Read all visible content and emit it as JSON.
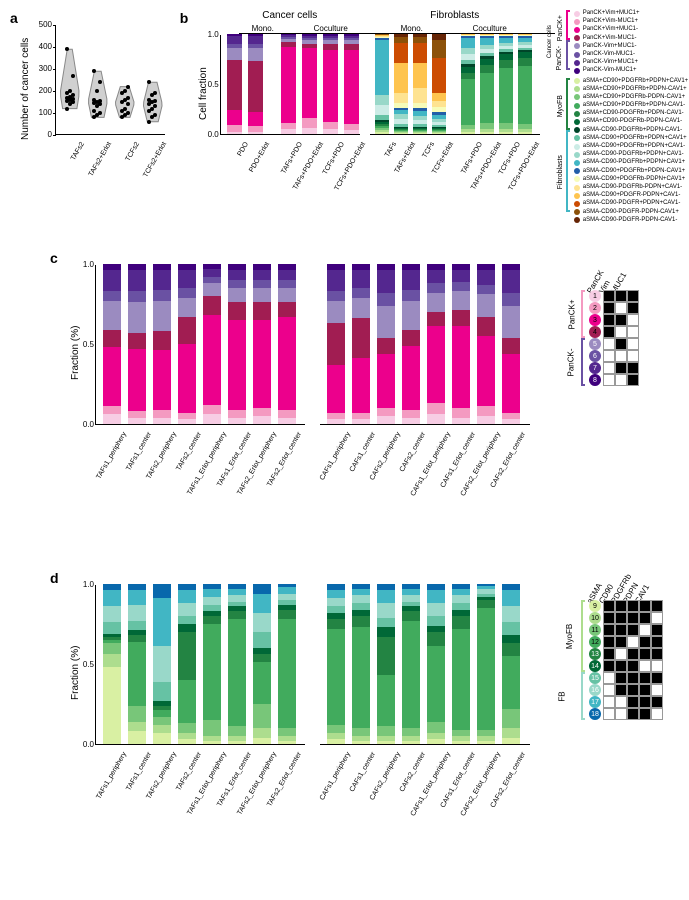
{
  "panel_a": {
    "label": "a",
    "ylabel": "Number of cancer cells",
    "ylim": [
      0,
      500
    ],
    "yticks": [
      0,
      100,
      200,
      300,
      400,
      500
    ],
    "categories": [
      "TAFs2",
      "TAFs2+Erlot",
      "TCFs2",
      "TCFs2+Erlot"
    ],
    "violin_color": "#d0d0d0",
    "dot_color": "#000000",
    "points": [
      [
        120,
        140,
        150,
        155,
        160,
        165,
        170,
        175,
        180,
        190,
        200,
        270,
        390
      ],
      [
        80,
        90,
        100,
        110,
        130,
        140,
        145,
        150,
        155,
        160,
        200,
        240,
        290
      ],
      [
        80,
        90,
        100,
        110,
        120,
        140,
        150,
        160,
        170,
        190,
        200,
        220
      ],
      [
        60,
        80,
        90,
        110,
        120,
        130,
        140,
        150,
        155,
        160,
        180,
        190,
        240
      ]
    ]
  },
  "panel_b": {
    "label": "b",
    "title_left": "Cancer cells",
    "title_right": "Fibroblasts",
    "sub_left": [
      "Mono.",
      "Coculture"
    ],
    "sub_right": [
      "Mono.",
      "Coculture"
    ],
    "ylabel": "Cell fraction",
    "ylim": [
      0,
      1.0
    ],
    "yticks": [
      0,
      0.5,
      1.0
    ],
    "cats_cancer": [
      "PDO",
      "PDO+Erlot",
      "TAFs+PDO",
      "TAFs+PDO+Erlot",
      "TCFs+PDO",
      "TCFs+PDO+Erlot"
    ],
    "cats_fib": [
      "TAFs",
      "TAFs+Erlot",
      "TCFs",
      "TCFs+Erlot",
      "TAFs+PDO",
      "TAFs+PDO+Erlot",
      "TCFs+PDO",
      "TCFs+PDO+Erlot"
    ],
    "cancer_colors": [
      "#f7cde4",
      "#f49ac1",
      "#ec008c",
      "#a11d52",
      "#9b8bc0",
      "#6a51a3",
      "#54278f",
      "#3f007d"
    ],
    "cancer_labels": [
      "PanCK+Vim+MUC1+",
      "PanCK+Vim-MUC1+",
      "PanCK+Vim+MUC1-",
      "PanCK+Vim-MUC1-",
      "PanCK-Vim+MUC1-",
      "PanCK-Vim-MUC1-",
      "PanCK-Vim+MUC1+",
      "PanCK-Vim-MUC1+"
    ],
    "cancer_section_top": "PanCK+",
    "cancer_section_bot": "PanCK-",
    "cancer_group": "Cancer cells",
    "fib_colors": [
      "#d9f0a3",
      "#addd8e",
      "#78c679",
      "#41ab5d",
      "#238443",
      "#006837",
      "#004529",
      "#66c2a4",
      "#ccece6",
      "#99d8c9",
      "#41b6c4",
      "#225ea8",
      "#f7fcb9",
      "#fee391",
      "#fec44f",
      "#cc4c02",
      "#8c5109",
      "#662506"
    ],
    "fib_labels": [
      "aSMA+CD90+PDGFRb+PDPN+CAV1+",
      "aSMA+CD90+PDGFRb+PDPN-CAV1+",
      "aSMA+CD90+PDGFRb-PDPN-CAV1+",
      "aSMA+CD90+PDGFRb+PDPN-CAV1-",
      "aSMA+CD90-PDGFRb+PDPN-CAV1-",
      "aSMA+CD90-PDGFRb-PDPN-CAV1-",
      "aSMA-CD90-PDGFRb+PDPN-CAV1-",
      "aSMA-CD90+PDGFRb+PDPN+CAV1+",
      "aSMA-CD90+PDGFRb+PDPN+CAV1-",
      "aSMA-CD90-PDGFRb+PDPN+CAV1-",
      "aSMA-CD90-PDGFRb+PDPN+CAV1+",
      "aSMA-CD90+PDGFRb+PDPN-CAV1+",
      "aSMA-CD90+PDGFRb-PDPN+CAV1+",
      "aSMA-CD90-PDGFRb-PDPN+CAV1-",
      "aSMA-CD90+PDGFR-PDPN+CAV1-",
      "aSMA-CD90-PDGFR+PDPN+CAV1-",
      "aSMA-CD90-PDGFR-PDPN-CAV1+",
      "aSMA-CD90-PDGFR-PDPN-CAV1-"
    ],
    "fib_section_top": "MyoFB",
    "fib_section_bot": "Fibroblasts",
    "cancer_stacks": [
      [
        0.02,
        0.07,
        0.15,
        0.5,
        0.12,
        0.04,
        0.08,
        0.02
      ],
      [
        0.02,
        0.06,
        0.14,
        0.51,
        0.13,
        0.04,
        0.08,
        0.02
      ],
      [
        0.05,
        0.06,
        0.76,
        0.05,
        0.03,
        0.02,
        0.02,
        0.01
      ],
      [
        0.06,
        0.1,
        0.7,
        0.04,
        0.04,
        0.02,
        0.02,
        0.02
      ],
      [
        0.05,
        0.07,
        0.72,
        0.06,
        0.04,
        0.02,
        0.02,
        0.02
      ],
      [
        0.04,
        0.06,
        0.74,
        0.06,
        0.04,
        0.02,
        0.02,
        0.02
      ]
    ],
    "fib_stacks": [
      [
        0.02,
        0.02,
        0.02,
        0.02,
        0.02,
        0.02,
        0.02,
        0.05,
        0.1,
        0.1,
        0.55,
        0.02,
        0.01,
        0.01,
        0.01,
        0.005,
        0.005,
        0.0
      ],
      [
        0.01,
        0.01,
        0.01,
        0.01,
        0.01,
        0.01,
        0.01,
        0.03,
        0.05,
        0.05,
        0.04,
        0.02,
        0.05,
        0.1,
        0.3,
        0.2,
        0.06,
        0.03
      ],
      [
        0.01,
        0.01,
        0.01,
        0.01,
        0.01,
        0.01,
        0.01,
        0.03,
        0.04,
        0.04,
        0.05,
        0.03,
        0.05,
        0.15,
        0.25,
        0.2,
        0.06,
        0.03
      ],
      [
        0.01,
        0.01,
        0.01,
        0.01,
        0.01,
        0.01,
        0.01,
        0.02,
        0.03,
        0.03,
        0.04,
        0.03,
        0.05,
        0.06,
        0.08,
        0.35,
        0.18,
        0.06
      ],
      [
        0.02,
        0.03,
        0.04,
        0.46,
        0.06,
        0.06,
        0.03,
        0.04,
        0.06,
        0.06,
        0.1,
        0.02,
        0.01,
        0.005,
        0.005,
        0.0,
        0.0,
        0.0
      ],
      [
        0.02,
        0.03,
        0.06,
        0.5,
        0.08,
        0.06,
        0.03,
        0.03,
        0.04,
        0.04,
        0.07,
        0.02,
        0.01,
        0.005,
        0.005,
        0.0,
        0.0,
        0.0
      ],
      [
        0.02,
        0.03,
        0.06,
        0.55,
        0.08,
        0.06,
        0.02,
        0.03,
        0.03,
        0.03,
        0.05,
        0.02,
        0.01,
        0.005,
        0.005,
        0.0,
        0.0,
        0.0
      ],
      [
        0.02,
        0.03,
        0.05,
        0.58,
        0.08,
        0.06,
        0.02,
        0.02,
        0.03,
        0.03,
        0.04,
        0.02,
        0.01,
        0.005,
        0.005,
        0.0,
        0.0,
        0.0
      ]
    ]
  },
  "panel_c": {
    "label": "c",
    "ylabel": "Fraction (%)",
    "ylim": [
      0,
      1.0
    ],
    "yticks": [
      0.0,
      0.5,
      1.0
    ],
    "cats1": [
      "TAFs1_periphery",
      "TAFs1_center",
      "TAFs2_periphery",
      "TAFs2_center",
      "TAFs1_Erlot_periphery",
      "TAFs1_Erlot_center",
      "TAFs2_Erlot_periphery",
      "TAFs2_Erlot_center"
    ],
    "cats2": [
      "CAFs1_periphery",
      "CAFs1_center",
      "CAFs2_periphery",
      "CAFs2_center",
      "CAFs1_Erlot_periphery",
      "CAFs1_Erlot_center",
      "CAFs2_Erlot_periphery",
      "CAFs2_Erlot_center"
    ],
    "colors": [
      "#f7cde4",
      "#f49ac1",
      "#ec008c",
      "#a11d52",
      "#9b8bc0",
      "#6a51a3",
      "#54278f",
      "#3f007d"
    ],
    "matrix_headers": [
      "PanCK",
      "Vim",
      "MUC1"
    ],
    "matrix_rows": [
      [
        1,
        1,
        1
      ],
      [
        1,
        0,
        1
      ],
      [
        1,
        1,
        0
      ],
      [
        1,
        0,
        0
      ],
      [
        0,
        1,
        0
      ],
      [
        0,
        0,
        0
      ],
      [
        0,
        1,
        1
      ],
      [
        0,
        0,
        1
      ]
    ],
    "matrix_section_top": "PanCK+",
    "matrix_section_bot": "PanCK-",
    "stacks1": [
      [
        0.06,
        0.05,
        0.37,
        0.11,
        0.18,
        0.06,
        0.13,
        0.04
      ],
      [
        0.04,
        0.04,
        0.39,
        0.1,
        0.19,
        0.07,
        0.13,
        0.04
      ],
      [
        0.04,
        0.05,
        0.37,
        0.12,
        0.19,
        0.07,
        0.12,
        0.04
      ],
      [
        0.03,
        0.04,
        0.43,
        0.17,
        0.12,
        0.06,
        0.11,
        0.04
      ],
      [
        0.06,
        0.06,
        0.56,
        0.12,
        0.08,
        0.04,
        0.05,
        0.03
      ],
      [
        0.04,
        0.05,
        0.56,
        0.11,
        0.09,
        0.05,
        0.06,
        0.04
      ],
      [
        0.05,
        0.05,
        0.55,
        0.11,
        0.09,
        0.05,
        0.06,
        0.04
      ],
      [
        0.04,
        0.05,
        0.58,
        0.09,
        0.09,
        0.05,
        0.06,
        0.04
      ]
    ],
    "stacks2": [
      [
        0.03,
        0.04,
        0.3,
        0.26,
        0.14,
        0.06,
        0.13,
        0.04
      ],
      [
        0.03,
        0.04,
        0.34,
        0.25,
        0.13,
        0.06,
        0.11,
        0.04
      ],
      [
        0.05,
        0.05,
        0.34,
        0.1,
        0.2,
        0.08,
        0.14,
        0.04
      ],
      [
        0.04,
        0.05,
        0.4,
        0.1,
        0.18,
        0.07,
        0.12,
        0.04
      ],
      [
        0.06,
        0.07,
        0.48,
        0.09,
        0.12,
        0.06,
        0.08,
        0.04
      ],
      [
        0.04,
        0.06,
        0.51,
        0.1,
        0.12,
        0.06,
        0.07,
        0.04
      ],
      [
        0.05,
        0.06,
        0.44,
        0.12,
        0.14,
        0.06,
        0.09,
        0.04
      ],
      [
        0.03,
        0.04,
        0.37,
        0.1,
        0.2,
        0.08,
        0.14,
        0.04
      ]
    ]
  },
  "panel_d": {
    "label": "d",
    "ylabel": "Fraction (%)",
    "ylim": [
      0,
      1.0
    ],
    "yticks": [
      0.0,
      0.5,
      1.0
    ],
    "cats1": [
      "TAFs1_periphery",
      "TAFs1_center",
      "TAFs2_periphery",
      "TAFs2_center",
      "TAFs1_Erlot_periphery",
      "TAFs1_Erlot_center",
      "TAFs2_Erlot_periphery",
      "TAFs2_Erlot_center"
    ],
    "cats2": [
      "CAFs1_periphery",
      "CAFs1_center",
      "CAFs2_periphery",
      "CAFs2_center",
      "CAFs1_Erlot_periphery",
      "CAFs1_Erlot_center",
      "CAFs2_Erlot_periphery",
      "CAFs2_Erlot_center"
    ],
    "colors": [
      "#d9f0a3",
      "#addd8e",
      "#78c679",
      "#41ab5d",
      "#238443",
      "#006837",
      "#66c2a4",
      "#99d8c9",
      "#41b6c4",
      "#0868ac"
    ],
    "matrix_headers": [
      "aSMA",
      "CD90",
      "PDGFRb",
      "PDPN",
      "CAV1"
    ],
    "matrix_nums": [
      9,
      10,
      11,
      12,
      13,
      14,
      15,
      16,
      17,
      18
    ],
    "matrix_rows": [
      [
        1,
        1,
        1,
        1,
        1
      ],
      [
        1,
        1,
        1,
        1,
        0
      ],
      [
        1,
        1,
        1,
        0,
        1
      ],
      [
        1,
        1,
        0,
        1,
        1
      ],
      [
        1,
        0,
        1,
        1,
        1
      ],
      [
        1,
        1,
        1,
        0,
        0
      ],
      [
        0,
        1,
        1,
        1,
        1
      ],
      [
        0,
        1,
        1,
        1,
        0
      ],
      [
        0,
        0,
        1,
        1,
        1
      ],
      [
        0,
        0,
        1,
        1,
        0
      ]
    ],
    "matrix_section_top": "MyoFB",
    "matrix_section_bot": "FB",
    "stacks1": [
      [
        0.48,
        0.08,
        0.07,
        0.02,
        0.02,
        0.02,
        0.07,
        0.1,
        0.1,
        0.04
      ],
      [
        0.08,
        0.06,
        0.1,
        0.4,
        0.04,
        0.03,
        0.06,
        0.1,
        0.09,
        0.04
      ],
      [
        0.07,
        0.05,
        0.05,
        0.04,
        0.03,
        0.03,
        0.12,
        0.22,
        0.3,
        0.09
      ],
      [
        0.03,
        0.04,
        0.06,
        0.27,
        0.3,
        0.05,
        0.05,
        0.08,
        0.08,
        0.04
      ],
      [
        0.02,
        0.03,
        0.1,
        0.6,
        0.05,
        0.03,
        0.04,
        0.05,
        0.05,
        0.03
      ],
      [
        0.02,
        0.03,
        0.06,
        0.67,
        0.05,
        0.03,
        0.03,
        0.04,
        0.04,
        0.03
      ],
      [
        0.04,
        0.06,
        0.15,
        0.26,
        0.05,
        0.04,
        0.1,
        0.12,
        0.12,
        0.06
      ],
      [
        0.02,
        0.03,
        0.05,
        0.68,
        0.06,
        0.03,
        0.03,
        0.04,
        0.04,
        0.02
      ]
    ],
    "stacks2": [
      [
        0.03,
        0.04,
        0.05,
        0.6,
        0.06,
        0.04,
        0.04,
        0.05,
        0.05,
        0.04
      ],
      [
        0.02,
        0.03,
        0.05,
        0.63,
        0.07,
        0.04,
        0.04,
        0.05,
        0.04,
        0.03
      ],
      [
        0.02,
        0.03,
        0.06,
        0.32,
        0.24,
        0.06,
        0.06,
        0.09,
        0.08,
        0.04
      ],
      [
        0.02,
        0.03,
        0.05,
        0.67,
        0.06,
        0.03,
        0.03,
        0.04,
        0.04,
        0.03
      ],
      [
        0.03,
        0.04,
        0.07,
        0.47,
        0.09,
        0.04,
        0.06,
        0.08,
        0.08,
        0.04
      ],
      [
        0.02,
        0.03,
        0.04,
        0.63,
        0.08,
        0.04,
        0.04,
        0.05,
        0.04,
        0.03
      ],
      [
        0.02,
        0.03,
        0.04,
        0.76,
        0.05,
        0.02,
        0.02,
        0.03,
        0.02,
        0.01
      ],
      [
        0.04,
        0.06,
        0.12,
        0.33,
        0.08,
        0.05,
        0.08,
        0.1,
        0.1,
        0.04
      ]
    ]
  }
}
